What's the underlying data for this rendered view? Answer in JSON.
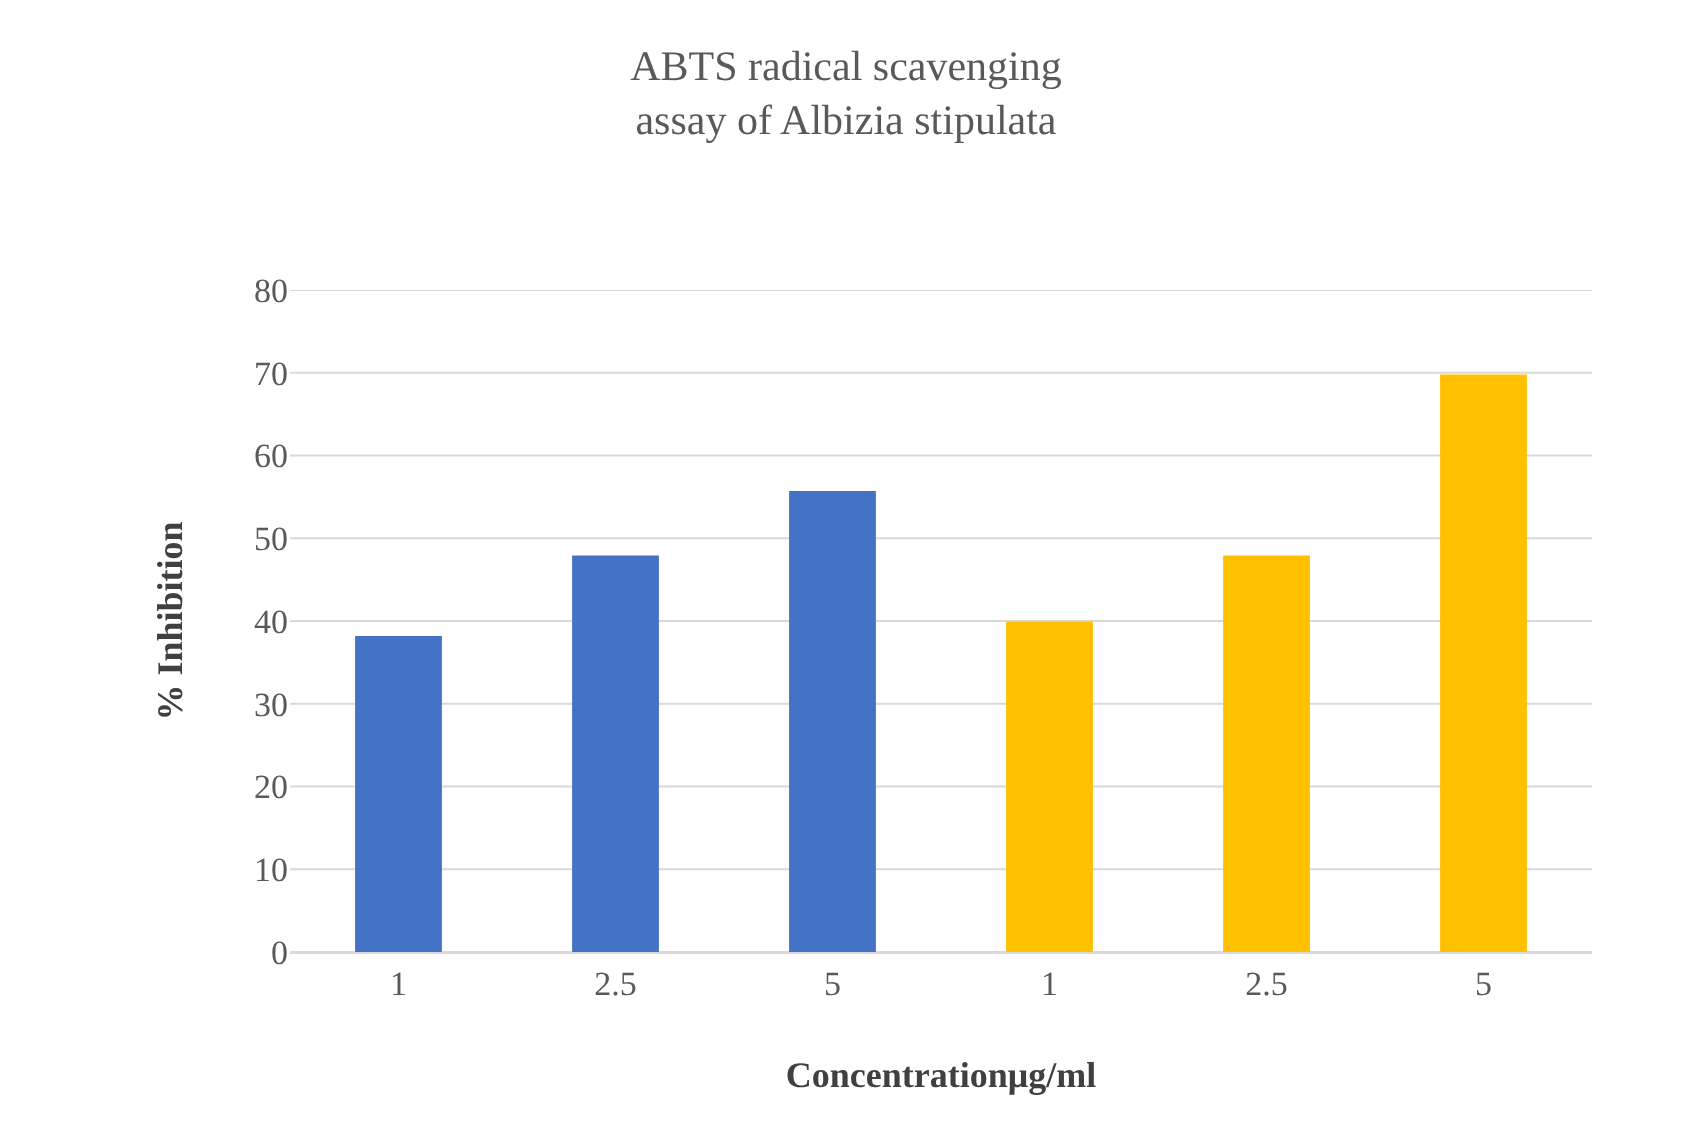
{
  "chart_data": {
    "type": "bar",
    "title": "ABTS radical scavenging\nassay of Albizia stipulata",
    "xlabel": "Concentrationμg/ml",
    "ylabel": "% Inhibition",
    "categories": [
      "1",
      "2.5",
      "5",
      "1",
      "2.5",
      "5"
    ],
    "values": [
      38.2,
      47.9,
      55.7,
      39.9,
      47.9,
      69.8
    ],
    "colors": [
      "#4472c4",
      "#4472c4",
      "#4472c4",
      "#ffc000",
      "#ffc000",
      "#ffc000"
    ],
    "ylim": [
      0,
      80
    ],
    "yticks": [
      0,
      10,
      20,
      30,
      40,
      50,
      60,
      70,
      80
    ],
    "grid": "y"
  }
}
